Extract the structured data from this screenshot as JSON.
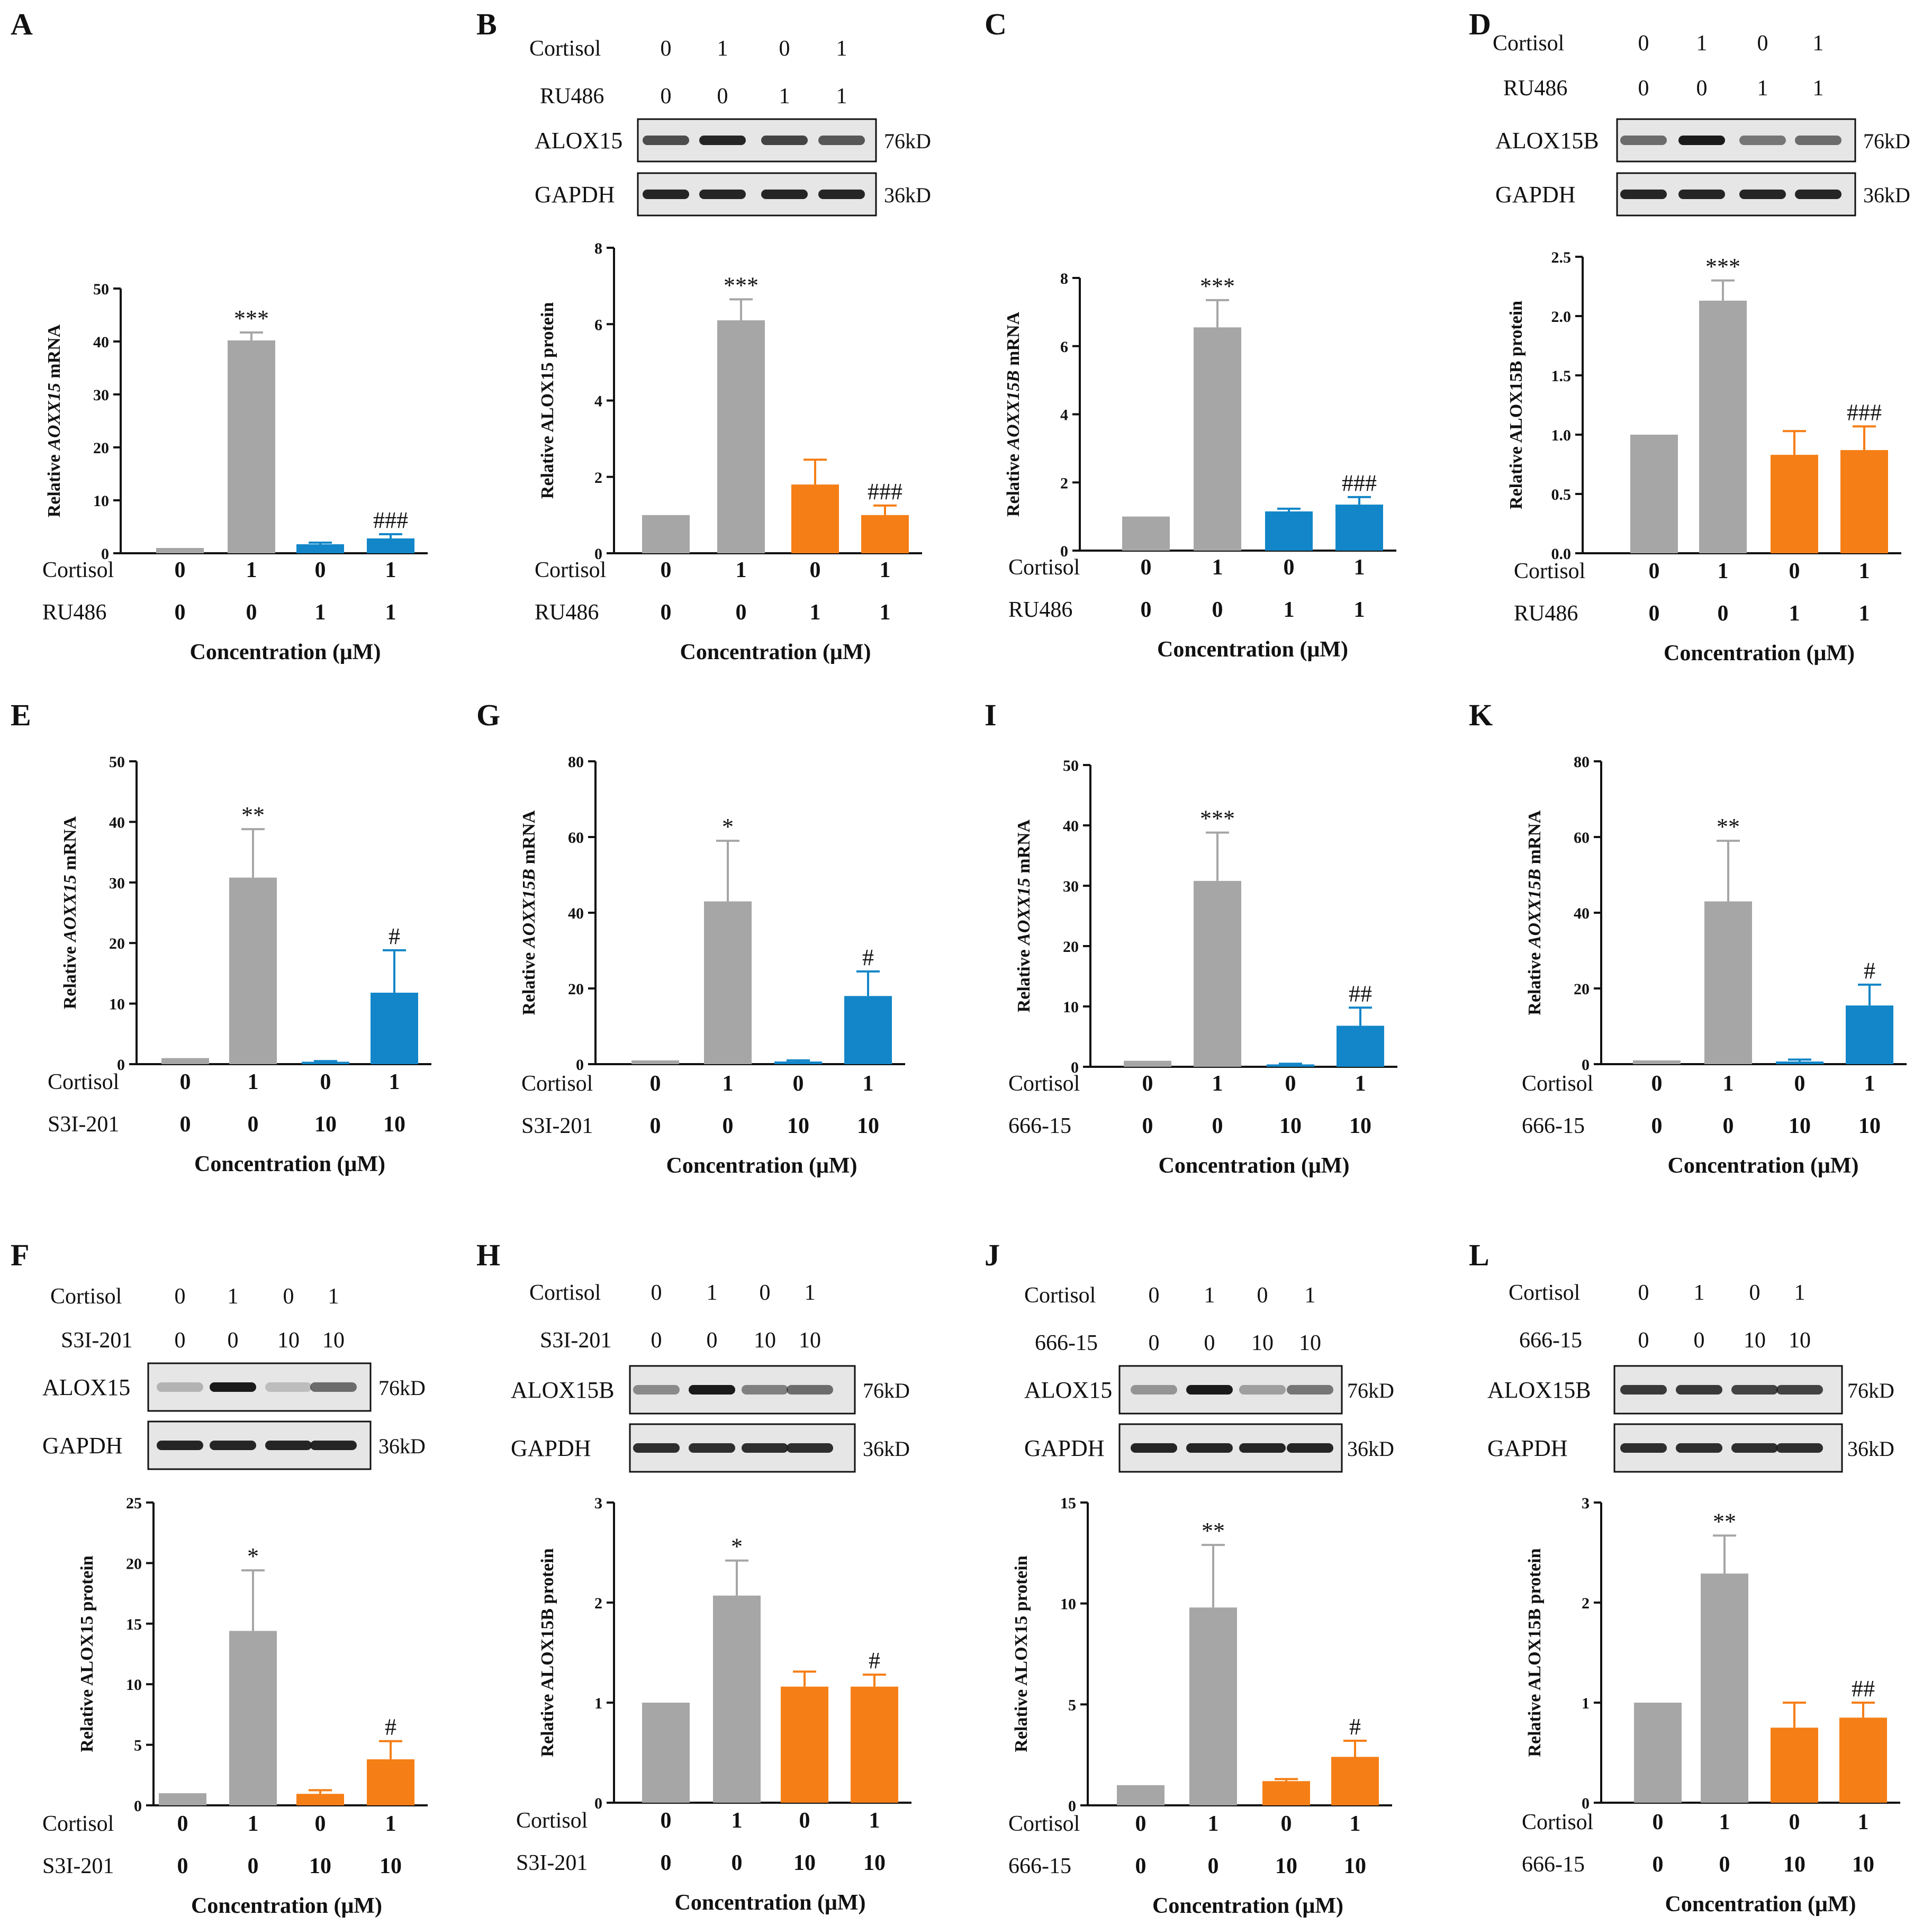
{
  "colors": {
    "control": "#a6a6a6",
    "blue": "#1286c8",
    "orange": "#f57e16",
    "axis": "#111111",
    "blot_bg": "#e6e6e6",
    "band": "#1a1a1a"
  },
  "chart_data": [
    {
      "panel": "A",
      "type": "bar",
      "ylabel_pre": "Relative ",
      "ylabel_gene": "AOXX15",
      "ylabel_post": " mRNA",
      "ylim": [
        0,
        50
      ],
      "yticks": [
        "0",
        "10",
        "20",
        "30",
        "40",
        "50"
      ],
      "values": [
        1,
        40.2,
        1.7,
        2.8
      ],
      "errors": [
        0,
        1.5,
        0.3,
        0.8
      ],
      "bar_colors": [
        "control",
        "control",
        "blue",
        "blue"
      ],
      "annotations": [
        "",
        "***",
        "",
        "###"
      ],
      "row1_label": "Cortisol",
      "row1": [
        "0",
        "1",
        "0",
        "1"
      ],
      "row2_label": "RU486",
      "row2": [
        "0",
        "0",
        "1",
        "1"
      ],
      "xlabel": "Concentration  (μM)"
    },
    {
      "panel": "B",
      "type": "bar",
      "ylabel_pre": "Relative ALOX15 protein",
      "ylabel_gene": "",
      "ylabel_post": "",
      "ylim": [
        0,
        8
      ],
      "yticks": [
        "0",
        "2",
        "4",
        "6",
        "8"
      ],
      "values": [
        1,
        6.1,
        1.8,
        1.0
      ],
      "errors": [
        0,
        0.55,
        0.65,
        0.25
      ],
      "bar_colors": [
        "control",
        "control",
        "orange",
        "orange"
      ],
      "annotations": [
        "",
        "***",
        "",
        "###"
      ],
      "row1_label": "Cortisol",
      "row1": [
        "0",
        "1",
        "0",
        "1"
      ],
      "row2_label": "RU486",
      "row2": [
        "0",
        "0",
        "1",
        "1"
      ],
      "xlabel": "Concentration  (μM)"
    },
    {
      "panel": "C",
      "type": "bar",
      "ylabel_pre": "Relative ",
      "ylabel_gene": "AOXX15B",
      "ylabel_post": " mRNA",
      "ylim": [
        0,
        8
      ],
      "yticks": [
        "0",
        "2",
        "4",
        "6",
        "8"
      ],
      "values": [
        1,
        6.55,
        1.15,
        1.35
      ],
      "errors": [
        0,
        0.8,
        0.08,
        0.22
      ],
      "bar_colors": [
        "control",
        "control",
        "blue",
        "blue"
      ],
      "annotations": [
        "",
        "***",
        "",
        "###"
      ],
      "row1_label": "Cortisol",
      "row1": [
        "0",
        "1",
        "0",
        "1"
      ],
      "row2_label": "RU486",
      "row2": [
        "0",
        "0",
        "1",
        "1"
      ],
      "xlabel": "Concentration  (μM)"
    },
    {
      "panel": "D",
      "type": "bar",
      "ylabel_pre": "Relative ALOX15B protein",
      "ylabel_gene": "",
      "ylabel_post": "",
      "ylim": [
        0,
        2.5
      ],
      "yticks": [
        "0.0",
        "0.5",
        "1.0",
        "1.5",
        "2.0",
        "2.5"
      ],
      "values": [
        1.0,
        2.13,
        0.83,
        0.87
      ],
      "errors": [
        0,
        0.17,
        0.2,
        0.2
      ],
      "bar_colors": [
        "control",
        "control",
        "orange",
        "orange"
      ],
      "annotations": [
        "",
        "***",
        "",
        "###"
      ],
      "row1_label": "Cortisol",
      "row1": [
        "0",
        "1",
        "0",
        "1"
      ],
      "row2_label": "RU486",
      "row2": [
        "0",
        "0",
        "1",
        "1"
      ],
      "xlabel": "Concentration  (μM)"
    },
    {
      "panel": "E",
      "type": "bar",
      "ylabel_pre": "Relative ",
      "ylabel_gene": "AOXX15",
      "ylabel_post": " mRNA",
      "ylim": [
        0,
        50
      ],
      "yticks": [
        "0",
        "10",
        "20",
        "30",
        "40",
        "50"
      ],
      "values": [
        1,
        30.8,
        0.4,
        11.8
      ],
      "errors": [
        0,
        8,
        0.1,
        7
      ],
      "bar_colors": [
        "control",
        "control",
        "blue",
        "blue"
      ],
      "annotations": [
        "",
        "**",
        "",
        "#"
      ],
      "row1_label": "Cortisol",
      "row1": [
        "0",
        "1",
        "0",
        "1"
      ],
      "row2_label": "S3I-201",
      "row2": [
        "0",
        "0",
        "10",
        "10"
      ],
      "xlabel": "Concentration  (μM)"
    },
    {
      "panel": "G",
      "type": "bar",
      "ylabel_pre": "Relative ",
      "ylabel_gene": "AOXX15B",
      "ylabel_post": " mRNA",
      "ylim": [
        0,
        80
      ],
      "yticks": [
        "0",
        "20",
        "40",
        "60",
        "80"
      ],
      "values": [
        1,
        43,
        0.7,
        18
      ],
      "errors": [
        0,
        16,
        0.3,
        6.5
      ],
      "bar_colors": [
        "control",
        "control",
        "blue",
        "blue"
      ],
      "annotations": [
        "",
        "*",
        "",
        "#"
      ],
      "row1_label": "Cortisol",
      "row1": [
        "0",
        "1",
        "0",
        "1"
      ],
      "row2_label": "S3I-201",
      "row2": [
        "0",
        "0",
        "10",
        "10"
      ],
      "xlabel": "Concentration  (μM)"
    },
    {
      "panel": "I",
      "type": "bar",
      "ylabel_pre": "Relative ",
      "ylabel_gene": "AOXX15",
      "ylabel_post": " mRNA",
      "ylim": [
        0,
        50
      ],
      "yticks": [
        "0",
        "10",
        "20",
        "30",
        "40",
        "50"
      ],
      "values": [
        1,
        30.8,
        0.4,
        6.8
      ],
      "errors": [
        0,
        8,
        0.1,
        3
      ],
      "bar_colors": [
        "control",
        "control",
        "blue",
        "blue"
      ],
      "annotations": [
        "",
        "***",
        "",
        "##"
      ],
      "row1_label": "Cortisol",
      "row1": [
        "0",
        "1",
        "0",
        "1"
      ],
      "row2_label": "666-15",
      "row2": [
        "0",
        "0",
        "10",
        "10"
      ],
      "xlabel": "Concentration  (μM)"
    },
    {
      "panel": "K",
      "type": "bar",
      "ylabel_pre": "Relative ",
      "ylabel_gene": "AOXX15B",
      "ylabel_post": " mRNA",
      "ylim": [
        0,
        80
      ],
      "yticks": [
        "0",
        "20",
        "40",
        "60",
        "80"
      ],
      "values": [
        1,
        43,
        0.7,
        15.5
      ],
      "errors": [
        0,
        16,
        0.5,
        5.5
      ],
      "bar_colors": [
        "control",
        "control",
        "blue",
        "blue"
      ],
      "annotations": [
        "",
        "**",
        "",
        "#"
      ],
      "row1_label": "Cortisol",
      "row1": [
        "0",
        "1",
        "0",
        "1"
      ],
      "row2_label": "666-15",
      "row2": [
        "0",
        "0",
        "10",
        "10"
      ],
      "xlabel": "Concentration  (μM)"
    },
    {
      "panel": "F",
      "type": "bar",
      "ylabel_pre": "Relative ALOX15 protein",
      "ylabel_gene": "",
      "ylabel_post": "",
      "ylim": [
        0,
        25
      ],
      "yticks": [
        "0",
        "5",
        "10",
        "15",
        "20",
        "25"
      ],
      "values": [
        1,
        14.4,
        0.95,
        3.8
      ],
      "errors": [
        0,
        5,
        0.3,
        1.5
      ],
      "bar_colors": [
        "control",
        "control",
        "orange",
        "orange"
      ],
      "annotations": [
        "",
        "*",
        "",
        "#"
      ],
      "row1_label": "Cortisol",
      "row1": [
        "0",
        "1",
        "0",
        "1"
      ],
      "row2_label": "S3I-201",
      "row2": [
        "0",
        "0",
        "10",
        "10"
      ],
      "xlabel": "Concentration  (μM)"
    },
    {
      "panel": "H",
      "type": "bar",
      "ylabel_pre": "Relative ALOX15B protein",
      "ylabel_gene": "",
      "ylabel_post": "",
      "ylim": [
        0,
        3
      ],
      "yticks": [
        "0",
        "1",
        "2",
        "3"
      ],
      "values": [
        1,
        2.07,
        1.16,
        1.16
      ],
      "errors": [
        0,
        0.35,
        0.15,
        0.12
      ],
      "bar_colors": [
        "control",
        "control",
        "orange",
        "orange"
      ],
      "annotations": [
        "",
        "*",
        "",
        "#"
      ],
      "row1_label": "Cortisol",
      "row1": [
        "0",
        "1",
        "0",
        "1"
      ],
      "row2_label": "S3I-201",
      "row2": [
        "0",
        "0",
        "10",
        "10"
      ],
      "xlabel": "Concentration  (μM)"
    },
    {
      "panel": "J",
      "type": "bar",
      "ylabel_pre": "Relative ALOX15 protein",
      "ylabel_gene": "",
      "ylabel_post": "",
      "ylim": [
        0,
        15
      ],
      "yticks": [
        "0",
        "5",
        "10",
        "15"
      ],
      "values": [
        1,
        9.8,
        1.2,
        2.4
      ],
      "errors": [
        0,
        3.1,
        0.1,
        0.8
      ],
      "bar_colors": [
        "control",
        "control",
        "orange",
        "orange"
      ],
      "annotations": [
        "",
        "**",
        "",
        "#"
      ],
      "row1_label": "Cortisol",
      "row1": [
        "0",
        "1",
        "0",
        "1"
      ],
      "row2_label": "666-15",
      "row2": [
        "0",
        "0",
        "10",
        "10"
      ],
      "xlabel": "Concentration  (μM)"
    },
    {
      "panel": "L",
      "type": "bar",
      "ylabel_pre": "Relative ALOX15B protein",
      "ylabel_gene": "",
      "ylabel_post": "",
      "ylim": [
        0,
        3
      ],
      "yticks": [
        "0",
        "1",
        "2",
        "3"
      ],
      "values": [
        1,
        2.29,
        0.75,
        0.85
      ],
      "errors": [
        0,
        0.38,
        0.25,
        0.15
      ],
      "bar_colors": [
        "control",
        "control",
        "orange",
        "orange"
      ],
      "annotations": [
        "",
        "**",
        "",
        "##"
      ],
      "row1_label": "Cortisol",
      "row1": [
        "0",
        "1",
        "0",
        "1"
      ],
      "row2_label": "666-15",
      "row2": [
        "0",
        "0",
        "10",
        "10"
      ],
      "xlabel": "Concentration  (μM)"
    }
  ],
  "western_blots": [
    {
      "panel": "B",
      "row1_label": "Cortisol",
      "row1": [
        "0",
        "1",
        "0",
        "1"
      ],
      "row2_label": "RU486",
      "row2": [
        "0",
        "0",
        "1",
        "1"
      ],
      "bands": [
        {
          "name": "ALOX15",
          "kd": "76kD",
          "intensity": [
            0.75,
            0.95,
            0.8,
            0.7
          ]
        },
        {
          "name": "GAPDH",
          "kd": "36kD",
          "intensity": [
            0.95,
            0.95,
            0.95,
            0.95
          ]
        }
      ]
    },
    {
      "panel": "D",
      "row1_label": "Cortisol",
      "row1": [
        "0",
        "1",
        "0",
        "1"
      ],
      "row2_label": "RU486",
      "row2": [
        "0",
        "0",
        "1",
        "1"
      ],
      "bands": [
        {
          "name": "ALOX15B",
          "kd": "76kD",
          "intensity": [
            0.6,
            1.0,
            0.55,
            0.6
          ]
        },
        {
          "name": "GAPDH",
          "kd": "36kD",
          "intensity": [
            0.95,
            0.95,
            0.95,
            0.95
          ]
        }
      ]
    },
    {
      "panel": "F",
      "row1_label": "Cortisol",
      "row1": [
        "0",
        "1",
        "0",
        "1"
      ],
      "row2_label": "S3I-201",
      "row2": [
        "0",
        "0",
        "10",
        "10"
      ],
      "bands": [
        {
          "name": "ALOX15",
          "kd": "76kD",
          "intensity": [
            0.25,
            1.0,
            0.2,
            0.6
          ]
        },
        {
          "name": "GAPDH",
          "kd": "36kD",
          "intensity": [
            0.95,
            0.95,
            0.95,
            0.95
          ]
        }
      ]
    },
    {
      "panel": "H",
      "row1_label": "Cortisol",
      "row1": [
        "0",
        "1",
        "0",
        "1"
      ],
      "row2_label": "S3I-201",
      "row2": [
        "0",
        "0",
        "10",
        "10"
      ],
      "bands": [
        {
          "name": "ALOX15B",
          "kd": "76kD",
          "intensity": [
            0.45,
            1.0,
            0.5,
            0.6
          ]
        },
        {
          "name": "GAPDH",
          "kd": "36kD",
          "intensity": [
            0.9,
            0.9,
            0.9,
            0.9
          ]
        }
      ]
    },
    {
      "panel": "J",
      "row1_label": "Cortisol",
      "row1": [
        "0",
        "1",
        "0",
        "1"
      ],
      "row2_label": "666-15",
      "row2": [
        "0",
        "0",
        "10",
        "10"
      ],
      "bands": [
        {
          "name": "ALOX15",
          "kd": "76kD",
          "intensity": [
            0.4,
            1.0,
            0.35,
            0.55
          ]
        },
        {
          "name": "GAPDH",
          "kd": "36kD",
          "intensity": [
            0.95,
            0.95,
            0.95,
            0.95
          ]
        }
      ]
    },
    {
      "panel": "L",
      "row1_label": "Cortisol",
      "row1": [
        "0",
        "1",
        "0",
        "1"
      ],
      "row2_label": "666-15",
      "row2": [
        "0",
        "0",
        "10",
        "10"
      ],
      "bands": [
        {
          "name": "ALOX15B",
          "kd": "76kD",
          "intensity": [
            0.85,
            0.85,
            0.8,
            0.8
          ]
        },
        {
          "name": "GAPDH",
          "kd": "36kD",
          "intensity": [
            0.9,
            0.9,
            0.9,
            0.9
          ]
        }
      ]
    }
  ]
}
